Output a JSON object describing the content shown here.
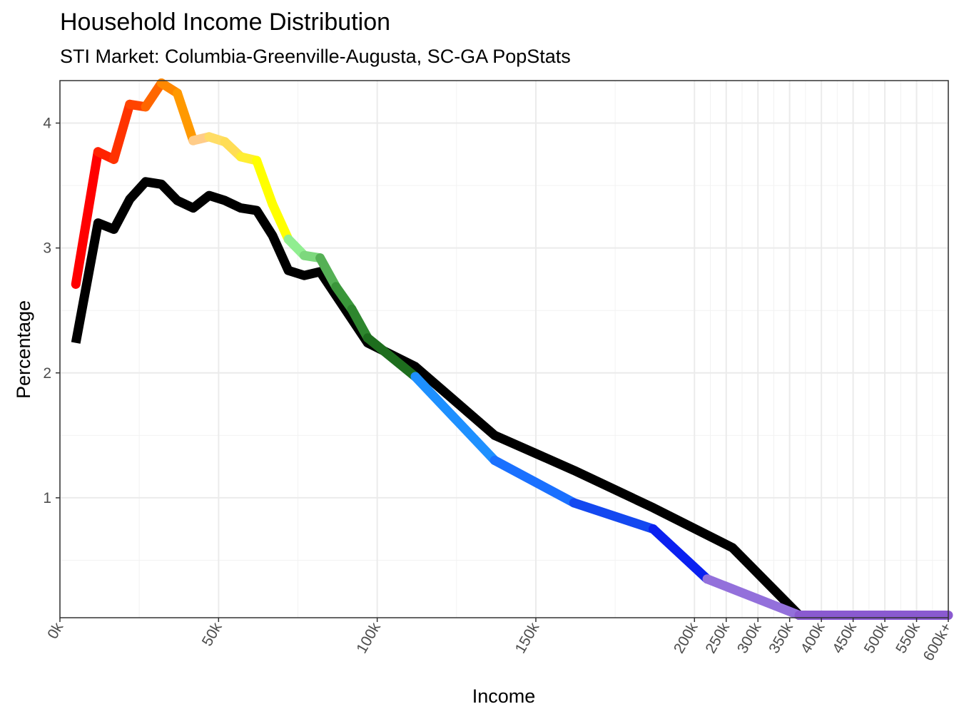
{
  "chart_data": {
    "type": "line",
    "title": "Household Income Distribution",
    "subtitle": "STI Market: Columbia-Greenville-Augusta, SC-GA PopStats",
    "xlabel": "Income",
    "ylabel": "Percentage",
    "ylim": [
      0.04,
      4.34
    ],
    "y_ticks": [
      1,
      2,
      3,
      4
    ],
    "x_ticks": [
      {
        "label": "0k",
        "v": 0
      },
      {
        "label": "50k",
        "v": 50
      },
      {
        "label": "100k",
        "v": 100
      },
      {
        "label": "150k",
        "v": 150
      },
      {
        "label": "200k",
        "v": 200
      },
      {
        "label": "250k",
        "v": 210
      },
      {
        "label": "300k",
        "v": 220
      },
      {
        "label": "350k",
        "v": 230
      },
      {
        "label": "400k",
        "v": 240
      },
      {
        "label": "450k",
        "v": 250
      },
      {
        "label": "500k",
        "v": 260
      },
      {
        "label": "550k",
        "v": 270
      },
      {
        "label": "600k+",
        "v": 280
      }
    ],
    "grid": true,
    "legend": "none",
    "series": [
      {
        "color": "#000000",
        "x": [
          5,
          12,
          17,
          22,
          27,
          32,
          37,
          42,
          47,
          52,
          57,
          62,
          67,
          72,
          77,
          82,
          87,
          92,
          97,
          112,
          137,
          162,
          187,
          212,
          233,
          280
        ],
        "values": [
          2.24,
          3.2,
          3.15,
          3.39,
          3.53,
          3.51,
          3.38,
          3.32,
          3.42,
          3.38,
          3.32,
          3.3,
          3.1,
          2.82,
          2.78,
          2.81,
          2.62,
          2.43,
          2.24,
          2.05,
          1.5,
          1.22,
          0.92,
          0.6,
          0.06,
          0.06
        ]
      },
      {
        "color": "gradient",
        "points": [
          {
            "x": 5,
            "y": 2.71,
            "color": "#ff0000"
          },
          {
            "x": 12,
            "y": 3.77,
            "color": "#ff2200"
          },
          {
            "x": 17,
            "y": 3.71,
            "color": "#ff3300"
          },
          {
            "x": 22,
            "y": 4.15,
            "color": "#ff4400"
          },
          {
            "x": 27,
            "y": 4.13,
            "color": "#ff6600"
          },
          {
            "x": 32,
            "y": 4.32,
            "color": "#ff8800"
          },
          {
            "x": 37,
            "y": 4.24,
            "color": "#ff9900"
          },
          {
            "x": 42,
            "y": 3.86,
            "color": "#ffcc88"
          },
          {
            "x": 47,
            "y": 3.89,
            "color": "#ffdd66"
          },
          {
            "x": 52,
            "y": 3.85,
            "color": "#ffdd55"
          },
          {
            "x": 57,
            "y": 3.73,
            "color": "#ffee33"
          },
          {
            "x": 62,
            "y": 3.7,
            "color": "#ffff00"
          },
          {
            "x": 67,
            "y": 3.35,
            "color": "#ffff00"
          },
          {
            "x": 72,
            "y": 3.07,
            "color": "#90ee90"
          },
          {
            "x": 77,
            "y": 2.94,
            "color": "#7dd87d"
          },
          {
            "x": 82,
            "y": 2.92,
            "color": "#55b055"
          },
          {
            "x": 87,
            "y": 2.69,
            "color": "#3a963a"
          },
          {
            "x": 92,
            "y": 2.51,
            "color": "#2e862e"
          },
          {
            "x": 97,
            "y": 2.28,
            "color": "#1e6e1e"
          },
          {
            "x": 112,
            "y": 1.97,
            "color": "#1e90ff"
          },
          {
            "x": 137,
            "y": 1.3,
            "color": "#1a70ff"
          },
          {
            "x": 162,
            "y": 0.96,
            "color": "#1448f0"
          },
          {
            "x": 187,
            "y": 0.75,
            "color": "#0a20f0"
          },
          {
            "x": 204,
            "y": 0.35,
            "color": "#9370db"
          },
          {
            "x": 233,
            "y": 0.06,
            "color": "#8a5ad0"
          },
          {
            "x": 280,
            "y": 0.06,
            "color": "#6a2aa0"
          }
        ]
      }
    ]
  }
}
